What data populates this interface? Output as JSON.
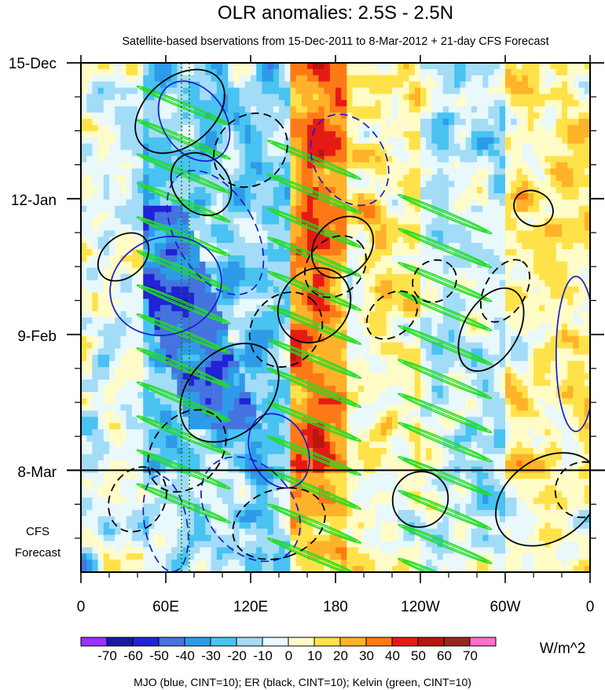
{
  "chart_data": {
    "type": "heatmap",
    "title": "OLR anomalies: 2.5S - 2.5N",
    "subtitle": "Satellite-based bservations from 15-Dec-2011 to 8-Mar-2012 + 21-day CFS Forecast",
    "x_tick_labels": [
      "0",
      "60E",
      "120E",
      "180",
      "120W",
      "60W",
      "0"
    ],
    "x_tick_lons": [
      0,
      60,
      120,
      180,
      240,
      300,
      360
    ],
    "x_range_deg": [
      0,
      360
    ],
    "y_tick_labels": [
      "15-Dec",
      "12-Jan",
      "9-Feb",
      "8-Mar"
    ],
    "y_tick_days": [
      0,
      28,
      56,
      84
    ],
    "y_range_days": [
      0,
      105
    ],
    "observation_end_day": 84,
    "forecast_label_line1": "CFS",
    "forecast_label_line2": "Forecast",
    "colorbar": {
      "levels": [
        "-70",
        "-60",
        "-50",
        "-40",
        "-30",
        "-20",
        "-10",
        "0",
        "10",
        "20",
        "30",
        "40",
        "50",
        "60",
        "70"
      ],
      "colors": [
        "#9b30ff",
        "#1a1a9e",
        "#2222d6",
        "#4573e0",
        "#2e9be8",
        "#49c3f2",
        "#a3dcf7",
        "#e8f8fb",
        "#fffcc8",
        "#ffe24a",
        "#ffb22a",
        "#ff7a16",
        "#e61a14",
        "#b8160e",
        "#96291b",
        "#ff6fd0"
      ]
    },
    "units": "W/m^2",
    "legend": "MJO (blue, CINT=10); ER (black, CINT=10); Kelvin (green, CINT=10)",
    "series_colors": {
      "mjo": "#1a1acc",
      "er": "#000000",
      "kelvin": "#22dd22"
    },
    "dry_band_lon": [
      148,
      190
    ],
    "light_band_lon": [
      190,
      240
    ]
  }
}
